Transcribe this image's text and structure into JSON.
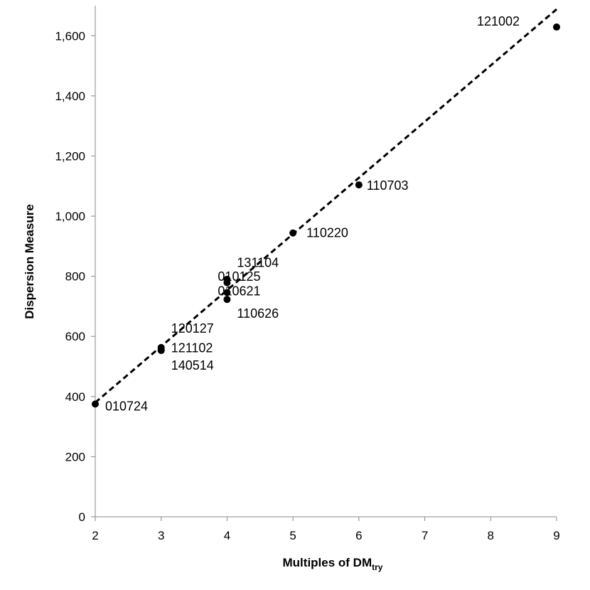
{
  "chart_data": {
    "type": "scatter",
    "title": "",
    "xlabel": "Multiples of DM",
    "xlabel_sub": "try",
    "ylabel": "Dispersion Measure",
    "xlim": [
      2,
      9
    ],
    "ylim": [
      0,
      1700
    ],
    "xticks": [
      2,
      3,
      4,
      5,
      6,
      7,
      8,
      9
    ],
    "yticks": [
      0,
      200,
      400,
      600,
      800,
      1000,
      1200,
      1400,
      1600
    ],
    "ytick_labels": [
      "0",
      "200",
      "400",
      "600",
      "800",
      "1,000",
      "1,200",
      "1,400",
      "1,600"
    ],
    "grid": false,
    "legend": false,
    "points": [
      {
        "label": "010724",
        "x": 2,
        "y": 375
      },
      {
        "label": "120127",
        "x": 3,
        "y": 553
      },
      {
        "label": "121102",
        "x": 3,
        "y": 557
      },
      {
        "label": "140514",
        "x": 3,
        "y": 563
      },
      {
        "label": "131104",
        "x": 4,
        "y": 779
      },
      {
        "label": "010125",
        "x": 4,
        "y": 790
      },
      {
        "label": "010621",
        "x": 4,
        "y": 746
      },
      {
        "label": "110626",
        "x": 4,
        "y": 723
      },
      {
        "label": "110220",
        "x": 5,
        "y": 944
      },
      {
        "label": "110703",
        "x": 6,
        "y": 1104
      },
      {
        "label": "121002",
        "x": 9,
        "y": 1629
      }
    ],
    "trendline": {
      "style": "dashed",
      "from": {
        "x": 2,
        "y": 380
      },
      "to": {
        "x": 9,
        "y": 1688
      }
    }
  }
}
